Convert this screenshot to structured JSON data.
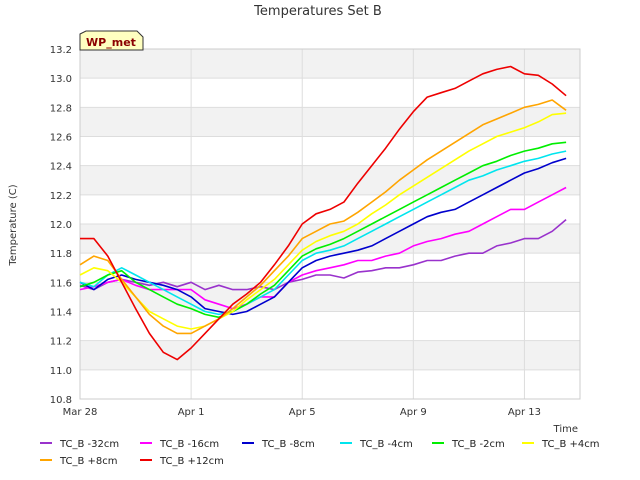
{
  "chart_data": {
    "type": "line",
    "title": "Temperatures Set B",
    "xlabel": "Time",
    "ylabel": "Temperature (C)",
    "badge": "WP_met",
    "xlim": [
      0,
      18
    ],
    "ylim": [
      10.8,
      13.2
    ],
    "y_ticks": [
      10.8,
      11.0,
      11.2,
      11.4,
      11.6,
      11.8,
      12.0,
      12.2,
      12.4,
      12.6,
      12.8,
      13.0,
      13.2
    ],
    "y_tick_labels": [
      "10.8",
      "11.0",
      "11.2",
      "11.4",
      "11.6",
      "11.8",
      "12.0",
      "12.2",
      "12.4",
      "12.6",
      "12.8",
      "13.0",
      "13.2"
    ],
    "x_ticks": [
      0,
      4,
      8,
      12,
      16
    ],
    "x_tick_labels": [
      "Mar 28",
      "Apr 1",
      "Apr 5",
      "Apr 9",
      "Apr 13"
    ],
    "grid": true,
    "legend_position": "bottom",
    "x": [
      0,
      0.5,
      1,
      1.5,
      2,
      2.5,
      3,
      3.5,
      4,
      4.5,
      5,
      5.5,
      6,
      6.5,
      7,
      7.5,
      8,
      8.5,
      9,
      9.5,
      10,
      10.5,
      11,
      11.5,
      12,
      12.5,
      13,
      13.5,
      14,
      14.5,
      15,
      15.5,
      16,
      16.5,
      17,
      17.5
    ],
    "series": [
      {
        "name": "TC_B -32cm",
        "color": "#9932cc",
        "values": [
          11.58,
          11.55,
          11.6,
          11.62,
          11.6,
          11.58,
          11.6,
          11.57,
          11.6,
          11.55,
          11.58,
          11.55,
          11.55,
          11.57,
          11.55,
          11.6,
          11.62,
          11.65,
          11.65,
          11.63,
          11.67,
          11.68,
          11.7,
          11.7,
          11.72,
          11.75,
          11.75,
          11.78,
          11.8,
          11.8,
          11.85,
          11.87,
          11.9,
          11.9,
          11.95,
          12.03
        ]
      },
      {
        "name": "TC_B -16cm",
        "color": "#ff00ff",
        "values": [
          11.55,
          11.57,
          11.6,
          11.62,
          11.58,
          11.55,
          11.55,
          11.55,
          11.55,
          11.48,
          11.45,
          11.42,
          11.45,
          11.5,
          11.5,
          11.6,
          11.65,
          11.68,
          11.7,
          11.72,
          11.75,
          11.75,
          11.78,
          11.8,
          11.85,
          11.88,
          11.9,
          11.93,
          11.95,
          12.0,
          12.05,
          12.1,
          12.1,
          12.15,
          12.2,
          12.25
        ]
      },
      {
        "name": "TC_B -8cm",
        "color": "#0000cd",
        "values": [
          11.6,
          11.55,
          11.62,
          11.65,
          11.62,
          11.6,
          11.58,
          11.55,
          11.5,
          11.42,
          11.4,
          11.38,
          11.4,
          11.45,
          11.5,
          11.6,
          11.7,
          11.75,
          11.78,
          11.8,
          11.82,
          11.85,
          11.9,
          11.95,
          12.0,
          12.05,
          12.08,
          12.1,
          12.15,
          12.2,
          12.25,
          12.3,
          12.35,
          12.38,
          12.42,
          12.45
        ]
      },
      {
        "name": "TC_B -4cm",
        "color": "#00e5ee",
        "values": [
          11.6,
          11.57,
          11.65,
          11.7,
          11.65,
          11.6,
          11.55,
          11.5,
          11.45,
          11.4,
          11.38,
          11.4,
          11.45,
          11.5,
          11.55,
          11.65,
          11.75,
          11.8,
          11.82,
          11.85,
          11.9,
          11.95,
          12.0,
          12.05,
          12.1,
          12.15,
          12.2,
          12.25,
          12.3,
          12.33,
          12.37,
          12.4,
          12.43,
          12.45,
          12.48,
          12.5
        ]
      },
      {
        "name": "TC_B -2cm",
        "color": "#00ee00",
        "values": [
          11.57,
          11.6,
          11.65,
          11.68,
          11.6,
          11.55,
          11.5,
          11.45,
          11.42,
          11.38,
          11.36,
          11.4,
          11.45,
          11.52,
          11.58,
          11.68,
          11.78,
          11.83,
          11.86,
          11.9,
          11.95,
          12.0,
          12.05,
          12.1,
          12.15,
          12.2,
          12.25,
          12.3,
          12.35,
          12.4,
          12.43,
          12.47,
          12.5,
          12.52,
          12.55,
          12.56
        ]
      },
      {
        "name": "TC_B +4cm",
        "color": "#ffff00",
        "values": [
          11.65,
          11.7,
          11.68,
          11.6,
          11.5,
          11.4,
          11.35,
          11.3,
          11.28,
          11.3,
          11.35,
          11.4,
          11.48,
          11.55,
          11.62,
          11.72,
          11.82,
          11.88,
          11.92,
          11.95,
          12.0,
          12.07,
          12.13,
          12.2,
          12.26,
          12.32,
          12.38,
          12.44,
          12.5,
          12.55,
          12.6,
          12.63,
          12.66,
          12.7,
          12.75,
          12.76
        ]
      },
      {
        "name": "TC_B +8cm",
        "color": "#ffa500",
        "values": [
          11.72,
          11.78,
          11.75,
          11.62,
          11.5,
          11.38,
          11.3,
          11.25,
          11.25,
          11.3,
          11.35,
          11.42,
          11.5,
          11.58,
          11.68,
          11.78,
          11.9,
          11.95,
          12.0,
          12.02,
          12.08,
          12.15,
          12.22,
          12.3,
          12.37,
          12.44,
          12.5,
          12.56,
          12.62,
          12.68,
          12.72,
          12.76,
          12.8,
          12.82,
          12.85,
          12.78
        ]
      },
      {
        "name": "TC_B +12cm",
        "color": "#ee0000",
        "values": [
          11.9,
          11.9,
          11.78,
          11.6,
          11.42,
          11.25,
          11.12,
          11.07,
          11.15,
          11.25,
          11.35,
          11.45,
          11.52,
          11.6,
          11.72,
          11.85,
          12.0,
          12.07,
          12.1,
          12.15,
          12.28,
          12.4,
          12.52,
          12.65,
          12.77,
          12.87,
          12.9,
          12.93,
          12.98,
          13.03,
          13.06,
          13.08,
          13.03,
          13.02,
          12.96,
          12.88
        ]
      }
    ]
  }
}
